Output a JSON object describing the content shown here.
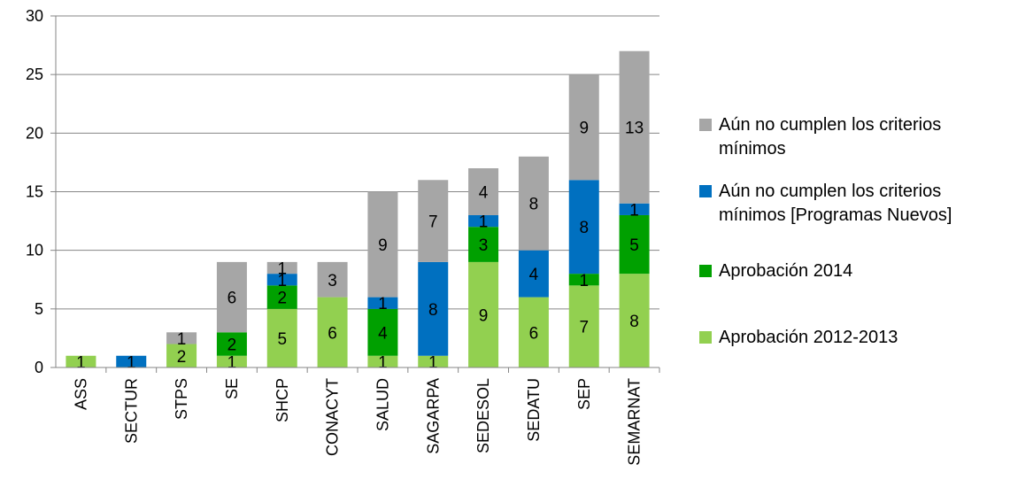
{
  "chart_data": {
    "type": "bar",
    "stacked": true,
    "categories": [
      "ASS",
      "SECTUR",
      "STPS",
      "SE",
      "SHCP",
      "CONACYT",
      "SALUD",
      "SAGARPA",
      "SEDESOL",
      "SEDATU",
      "SEP",
      "SEMARNAT"
    ],
    "series": [
      {
        "name": "Aprobación 2012-2013",
        "color": "#92d050",
        "values": [
          1,
          0,
          2,
          1,
          5,
          6,
          1,
          1,
          9,
          6,
          7,
          8
        ]
      },
      {
        "name": "Aprobación 2014",
        "color": "#00a000",
        "values": [
          0,
          0,
          0,
          2,
          2,
          0,
          4,
          0,
          3,
          0,
          1,
          5
        ]
      },
      {
        "name": "Aún no cumplen los criterios mínimos [Programas Nuevos]",
        "color": "#0070c0",
        "values": [
          0,
          1,
          0,
          0,
          1,
          0,
          1,
          8,
          1,
          4,
          8,
          1
        ]
      },
      {
        "name": "Aún no cumplen los criterios mínimos",
        "color": "#a6a6a6",
        "values": [
          0,
          0,
          1,
          6,
          1,
          3,
          9,
          7,
          4,
          8,
          9,
          13
        ]
      }
    ],
    "ylim": [
      0,
      30
    ],
    "yticks": [
      0,
      5,
      10,
      15,
      20,
      25,
      30
    ],
    "grid": true,
    "legend_position": "right"
  },
  "legend": {
    "items": [
      {
        "lines": [
          "Aún no cumplen los criterios",
          "mínimos"
        ],
        "color": "#a6a6a6"
      },
      {
        "lines": [
          "Aún no cumplen los criterios",
          "mínimos [Programas Nuevos]"
        ],
        "color": "#0070c0"
      },
      {
        "lines": [
          "Aprobación 2014"
        ],
        "color": "#00a000"
      },
      {
        "lines": [
          "Aprobación 2012-2013"
        ],
        "color": "#92d050"
      }
    ]
  }
}
